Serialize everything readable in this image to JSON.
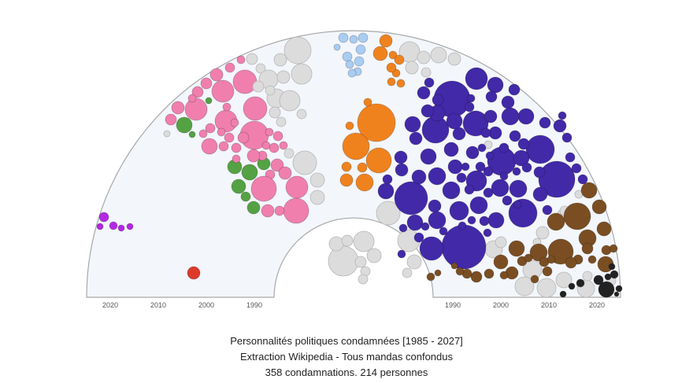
{
  "chart_data": {
    "type": "circle-packing half-donut (political timeline)",
    "axis_ticks_left": [
      "2020",
      "2010",
      "2000",
      "1990"
    ],
    "axis_ticks_right": [
      "1990",
      "2000",
      "2010",
      "2020"
    ],
    "caption": {
      "line1": "Personnalités politiques condamnées [1985 - 2027]",
      "line2": "Extraction Wikipedia - Tous mandas confondus",
      "line3": "358 condamnations. 214 personnes"
    },
    "range": {
      "start_year": 1985,
      "end_year": 2027
    },
    "condamnations": 358,
    "personnes": 214,
    "colors": {
      "violet_fonce": "#4229a8",
      "brun": "#7a4e22",
      "noir": "#222222",
      "gris": "#dcdcdc",
      "orange": "#f0821e",
      "bleu_clair": "#a9cdf2",
      "rose": "#f07fae",
      "vert": "#55a244",
      "violet": "#b428e3",
      "rouge": "#dc3b2a",
      "fond": "#f3f6fb",
      "contour": "#9a9a9a"
    }
  }
}
